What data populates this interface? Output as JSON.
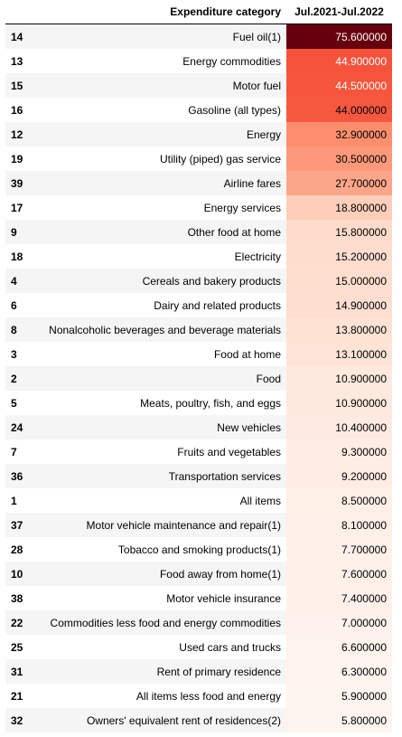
{
  "header": {
    "index": "",
    "category": "Expenditure category",
    "value": "Jul.2021-Jul.2022"
  },
  "chart_data": {
    "type": "table",
    "columns": [
      "Expenditure category",
      "Jul.2021-Jul.2022"
    ],
    "rows": [
      {
        "index": "14",
        "category": "Fuel oil(1)",
        "value": "75.600000",
        "num": 75.6
      },
      {
        "index": "13",
        "category": "Energy commodities",
        "value": "44.900000",
        "num": 44.9
      },
      {
        "index": "15",
        "category": "Motor fuel",
        "value": "44.500000",
        "num": 44.5
      },
      {
        "index": "16",
        "category": "Gasoline (all types)",
        "value": "44.000000",
        "num": 44.0
      },
      {
        "index": "12",
        "category": "Energy",
        "value": "32.900000",
        "num": 32.9
      },
      {
        "index": "19",
        "category": "Utility (piped) gas service",
        "value": "30.500000",
        "num": 30.5
      },
      {
        "index": "39",
        "category": "Airline fares",
        "value": "27.700000",
        "num": 27.7
      },
      {
        "index": "17",
        "category": "Energy services",
        "value": "18.800000",
        "num": 18.8
      },
      {
        "index": "9",
        "category": "Other food at home",
        "value": "15.800000",
        "num": 15.8
      },
      {
        "index": "18",
        "category": "Electricity",
        "value": "15.200000",
        "num": 15.2
      },
      {
        "index": "4",
        "category": "Cereals and bakery products",
        "value": "15.000000",
        "num": 15.0
      },
      {
        "index": "6",
        "category": "Dairy and related products",
        "value": "14.900000",
        "num": 14.9
      },
      {
        "index": "8",
        "category": "Nonalcoholic beverages and beverage materials",
        "value": "13.800000",
        "num": 13.8
      },
      {
        "index": "3",
        "category": "Food at home",
        "value": "13.100000",
        "num": 13.1
      },
      {
        "index": "2",
        "category": "Food",
        "value": "10.900000",
        "num": 10.9
      },
      {
        "index": "5",
        "category": "Meats, poultry, fish, and eggs",
        "value": "10.900000",
        "num": 10.9
      },
      {
        "index": "24",
        "category": "New vehicles",
        "value": "10.400000",
        "num": 10.4
      },
      {
        "index": "7",
        "category": "Fruits and vegetables",
        "value": "9.300000",
        "num": 9.3
      },
      {
        "index": "36",
        "category": "Transportation services",
        "value": "9.200000",
        "num": 9.2
      },
      {
        "index": "1",
        "category": "All items",
        "value": "8.500000",
        "num": 8.5
      },
      {
        "index": "37",
        "category": "Motor vehicle maintenance and repair(1)",
        "value": "8.100000",
        "num": 8.1
      },
      {
        "index": "28",
        "category": "Tobacco and smoking products(1)",
        "value": "7.700000",
        "num": 7.7
      },
      {
        "index": "10",
        "category": "Food away from home(1)",
        "value": "7.600000",
        "num": 7.6
      },
      {
        "index": "38",
        "category": "Motor vehicle insurance",
        "value": "7.400000",
        "num": 7.4
      },
      {
        "index": "22",
        "category": "Commodities less food and energy commodities",
        "value": "7.000000",
        "num": 7.0
      },
      {
        "index": "25",
        "category": "Used cars and trucks",
        "value": "6.600000",
        "num": 6.6
      },
      {
        "index": "31",
        "category": "Rent of primary residence",
        "value": "6.300000",
        "num": 6.3
      },
      {
        "index": "21",
        "category": "All items less food and energy",
        "value": "5.900000",
        "num": 5.9
      },
      {
        "index": "32",
        "category": "Owners' equivalent rent of residences(2)",
        "value": "5.800000",
        "num": 5.8
      }
    ],
    "color_scale": {
      "name": "Reds",
      "min": 5.8,
      "max": 75.6,
      "stops": [
        "#fff5f0",
        "#fee0d2",
        "#fcbba1",
        "#fc9272",
        "#fb6a4a",
        "#ef3b2c",
        "#cb181d",
        "#a50f15",
        "#67000d"
      ]
    }
  }
}
